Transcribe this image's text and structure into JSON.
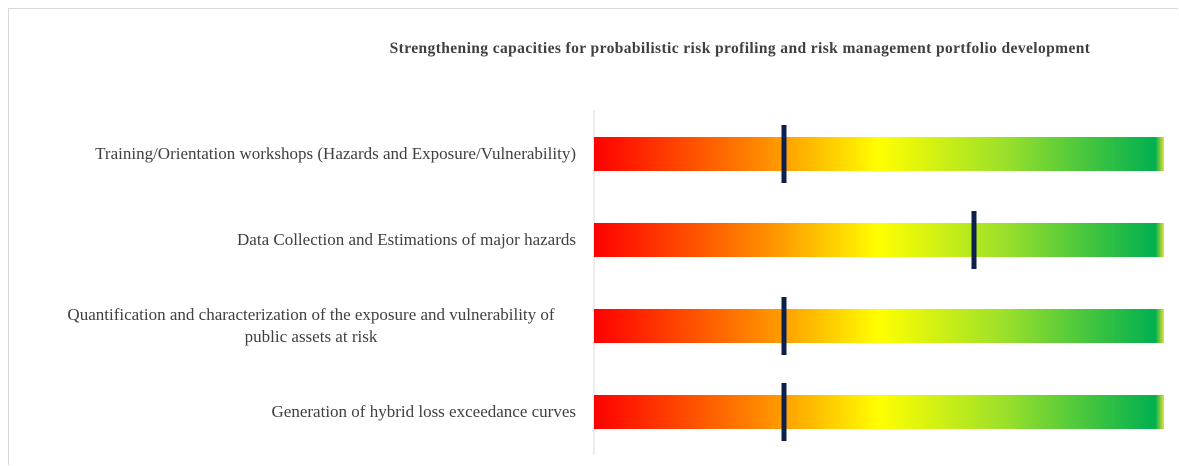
{
  "chart_data": {
    "type": "bullet",
    "title": "Strengthening capacities for probabilistic risk profiling and risk management portfolio development",
    "categories": [
      "Training/Orientation workshops (Hazards and Exposure/Vulnerability)",
      "Data Collection and Estimations of major hazards",
      "Quantification and characterization of the exposure and vulnerability of public assets at risk",
      "Generation of hybrid loss exceedance curves"
    ],
    "values": [
      1,
      2,
      1,
      1
    ],
    "xlim": [
      0,
      3
    ],
    "color": "#0d1f4a"
  }
}
